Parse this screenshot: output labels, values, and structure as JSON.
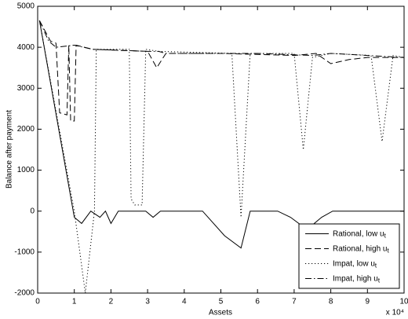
{
  "chart_data": {
    "type": "line",
    "xlabel": "Assets",
    "ylabel": "Balance after payment",
    "x_multiplier": "x 10⁴",
    "xlim": [
      0,
      10
    ],
    "xticks": [
      0,
      1,
      2,
      3,
      4,
      5,
      6,
      7,
      8,
      9,
      10
    ],
    "ylim": [
      -2000,
      5000
    ],
    "yticks": [
      -2000,
      -1000,
      0,
      1000,
      2000,
      3000,
      4000,
      5000
    ],
    "grid": false,
    "legend": "lower right",
    "series": [
      {
        "name": "Rational, low ut",
        "color": "#000000",
        "style": "solid",
        "x": [
          0.05,
          1.0,
          1.2,
          1.45,
          1.7,
          1.85,
          2.0,
          2.2,
          2.95,
          3.15,
          3.35,
          4.5,
          5.1,
          5.55,
          5.8,
          6.55,
          6.9,
          7.35,
          7.75,
          8.05,
          10
        ],
        "values": [
          4650,
          -150,
          -300,
          0,
          -150,
          0,
          -300,
          0,
          0,
          -150,
          0,
          0,
          -600,
          -900,
          0,
          0,
          -150,
          -450,
          -150,
          0,
          0
        ]
      },
      {
        "name": "Rational, high ut",
        "color": "#000000",
        "style": "dashed",
        "x": [
          0.05,
          0.35,
          0.5,
          0.6,
          0.8,
          0.85,
          0.9,
          1.0,
          1.05,
          1.5,
          3.0,
          3.25,
          3.5,
          5,
          7,
          7.6,
          8.0,
          8.5,
          9,
          10
        ],
        "values": [
          4650,
          4150,
          4100,
          2400,
          2350,
          4050,
          2200,
          2200,
          4050,
          3950,
          3900,
          3500,
          3850,
          3850,
          3800,
          3850,
          3600,
          3700,
          3750,
          3750
        ]
      },
      {
        "name": "Impat, low ut",
        "color": "#000000",
        "style": "dotted",
        "x": [
          0.05,
          1.0,
          1.3,
          1.55,
          1.6,
          2.5,
          2.55,
          2.65,
          2.85,
          2.95,
          3.3,
          5.3,
          5.55,
          5.8,
          7,
          7.25,
          7.5,
          8,
          9.1,
          9.4,
          9.7,
          10
        ],
        "values": [
          4650,
          0,
          -2000,
          0,
          3950,
          3950,
          300,
          150,
          150,
          3950,
          3900,
          3850,
          -150,
          3850,
          3850,
          1500,
          3750,
          3850,
          3800,
          1700,
          3800,
          3750
        ]
      },
      {
        "name": "Impat, high ut",
        "color": "#000000",
        "style": "dashdot",
        "x": [
          0.05,
          0.3,
          0.5,
          1.0,
          1.5,
          3.0,
          3.3,
          3.5,
          5,
          6,
          7.5,
          8,
          9,
          10
        ],
        "values": [
          4650,
          4150,
          4000,
          4050,
          3950,
          3900,
          3900,
          3850,
          3850,
          3850,
          3800,
          3850,
          3800,
          3750
        ]
      }
    ]
  }
}
